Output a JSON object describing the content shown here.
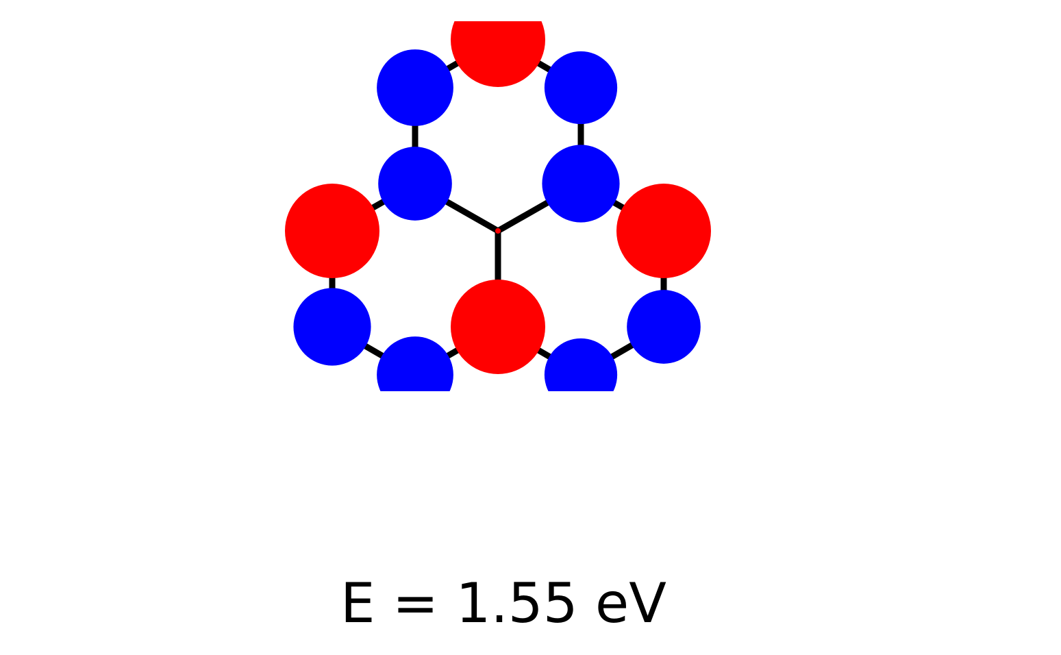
{
  "energy_label": "E = 1.55 eV",
  "colors": {
    "positive_lobe": "#ff0000",
    "negative_lobe": "#0000ff",
    "bond": "#000000",
    "background": "#ffffff"
  },
  "molecule": {
    "center_atom": {
      "color": "positive_lobe"
    },
    "atoms": [
      {
        "id": "a1",
        "lobe": "positive",
        "relative_size": 1.0
      },
      {
        "id": "a2",
        "lobe": "negative",
        "relative_size": 0.81
      },
      {
        "id": "a3",
        "lobe": "negative",
        "relative_size": 0.77
      },
      {
        "id": "a4",
        "lobe": "negative",
        "relative_size": 0.78
      },
      {
        "id": "a5",
        "lobe": "negative",
        "relative_size": 0.82
      },
      {
        "id": "a6",
        "lobe": "positive",
        "relative_size": 1.0
      },
      {
        "id": "a7",
        "lobe": "positive",
        "relative_size": 1.0
      },
      {
        "id": "a8",
        "lobe": "negative",
        "relative_size": 0.82
      },
      {
        "id": "a9",
        "lobe": "negative",
        "relative_size": 0.78
      },
      {
        "id": "a10",
        "lobe": "positive",
        "relative_size": 1.0
      },
      {
        "id": "a11",
        "lobe": "negative",
        "relative_size": 0.81
      },
      {
        "id": "a12",
        "lobe": "negative",
        "relative_size": 0.77
      }
    ]
  }
}
